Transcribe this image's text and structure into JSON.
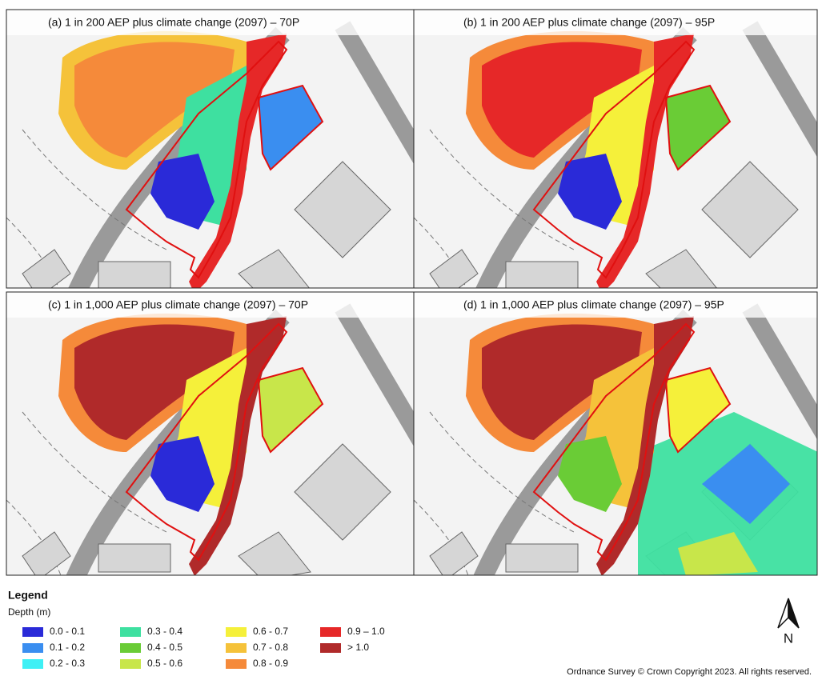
{
  "panels": [
    {
      "label": "(a) 1 in 200 AEP plus climate change (2097) – 70P"
    },
    {
      "label": "(b) 1 in 200 AEP plus climate change (2097) – 95P"
    },
    {
      "label": "(c) 1 in 1,000 AEP plus climate change (2097) – 70P"
    },
    {
      "label": "(d) 1 in 1,000 AEP plus climate change (2097) – 95P"
    }
  ],
  "legend": {
    "title": "Legend",
    "subtitle": "Depth (m)",
    "items": [
      {
        "label": "0.0 - 0.1",
        "color": "#2a2ad8"
      },
      {
        "label": "0.1 - 0.2",
        "color": "#3a8ef0"
      },
      {
        "label": "0.2 - 0.3",
        "color": "#3ef0f5"
      },
      {
        "label": "0.3 - 0.4",
        "color": "#3ee0a0"
      },
      {
        "label": "0.4 - 0.5",
        "color": "#6acc36"
      },
      {
        "label": "0.5 - 0.6",
        "color": "#c8e64a"
      },
      {
        "label": "0.6 - 0.7",
        "color": "#f5f03a"
      },
      {
        "label": "0.7 - 0.8",
        "color": "#f5c23a"
      },
      {
        "label": "0.8 - 0.9",
        "color": "#f58a3a"
      },
      {
        "label": "0.9 – 1.0",
        "color": "#e62828"
      },
      {
        "label": "> 1.0",
        "color": "#b02a2a"
      }
    ]
  },
  "north_label": "N",
  "copyright": "Ordnance Survey © Crown Copyright 2023. All rights reserved."
}
